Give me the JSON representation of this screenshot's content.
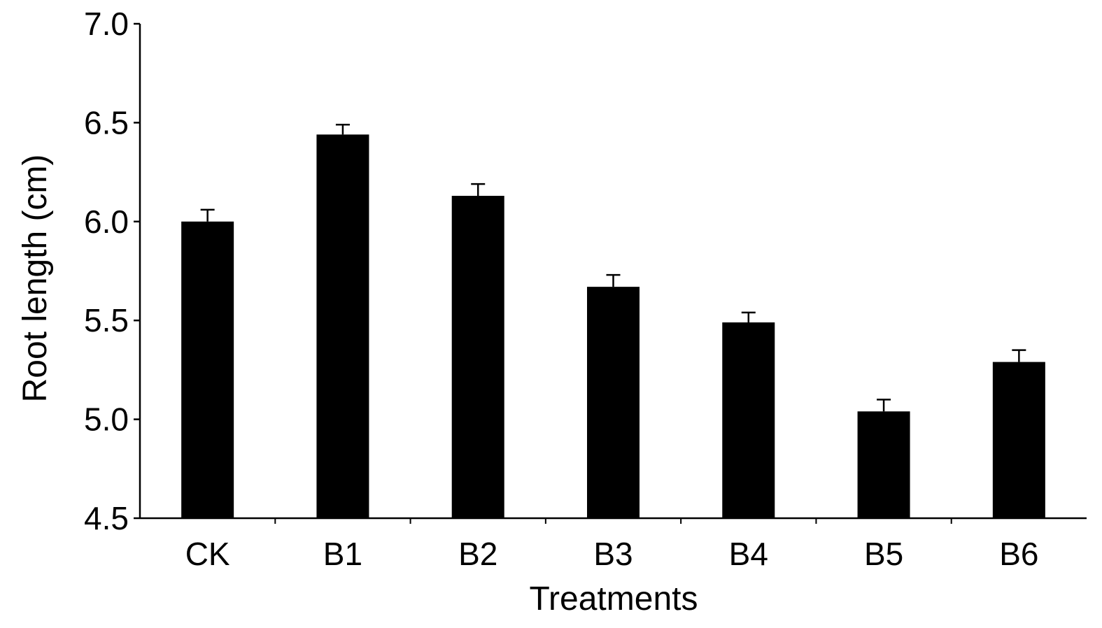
{
  "chart_data": {
    "type": "bar",
    "title": "",
    "xlabel": "Treatments",
    "ylabel": "Root length (cm)",
    "categories": [
      "CK",
      "B1",
      "B2",
      "B3",
      "B4",
      "B5",
      "B6"
    ],
    "values": [
      6.0,
      6.44,
      6.13,
      5.67,
      5.49,
      5.04,
      5.29
    ],
    "errors": [
      0.06,
      0.05,
      0.06,
      0.06,
      0.05,
      0.06,
      0.06
    ],
    "ylim": [
      4.5,
      7.0
    ],
    "yticks": [
      "4.5",
      "5.0",
      "5.5",
      "6.0",
      "6.5",
      "7.0"
    ],
    "grid": false,
    "bar_color": "#000000"
  }
}
